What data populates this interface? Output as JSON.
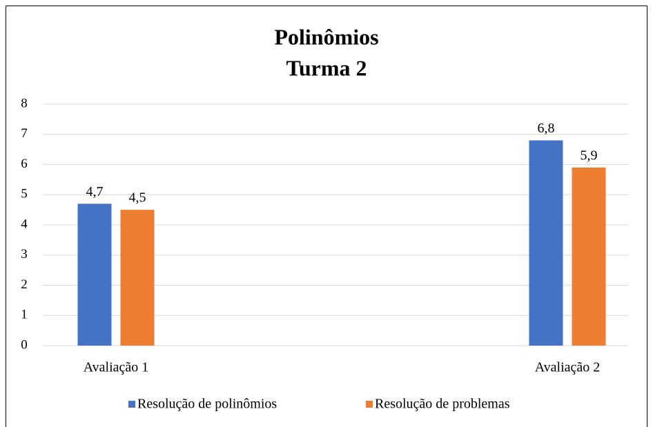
{
  "chart_data": {
    "type": "bar",
    "title": "Polinômios",
    "subtitle": "Turma 2",
    "categories": [
      "Avaliação 1",
      "Avaliação 2"
    ],
    "series": [
      {
        "name": "Resolução de polinômios",
        "color": "#4472c4",
        "values": [
          4.7,
          6.8
        ],
        "value_labels": [
          "4,7",
          "6,8"
        ]
      },
      {
        "name": "Resolução de problemas",
        "color": "#ed7d31",
        "values": [
          4.5,
          5.9
        ],
        "value_labels": [
          "4,5",
          "5,9"
        ]
      }
    ],
    "ylim": [
      0,
      8
    ],
    "yticks": [
      0,
      1,
      2,
      3,
      4,
      5,
      6,
      7,
      8
    ],
    "grid": true,
    "legend": "bottom"
  }
}
